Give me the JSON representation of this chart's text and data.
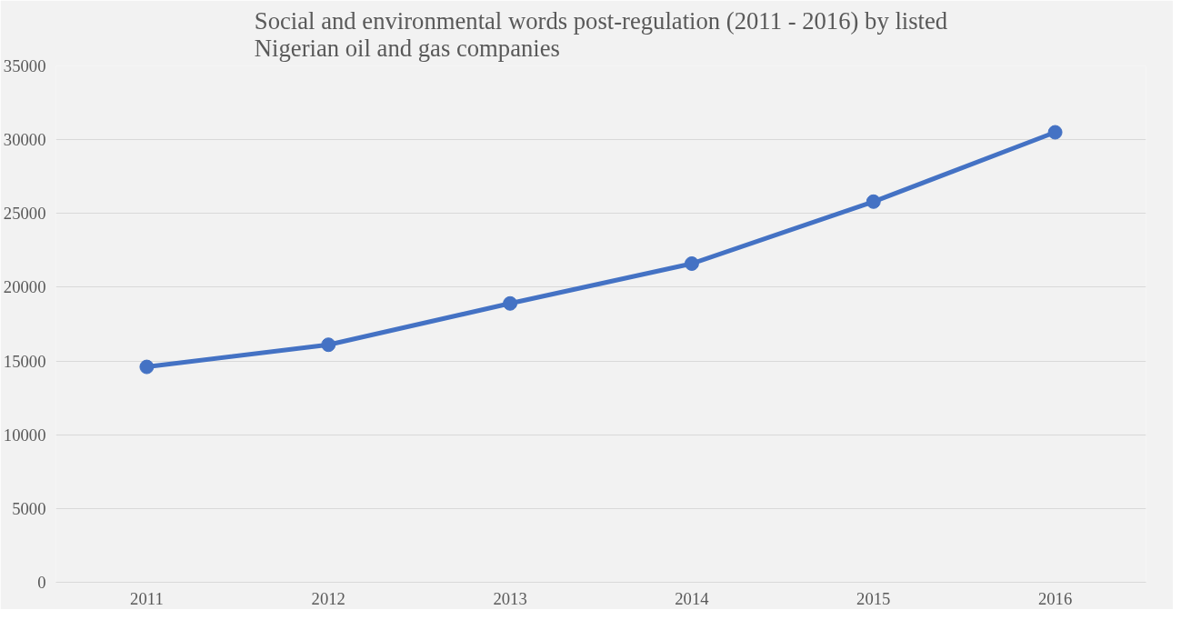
{
  "chart_data": {
    "type": "line",
    "title": "Social and environmental words post-regulation (2011 - 2016) by listed Nigerian oil and gas companies",
    "categories": [
      "2011",
      "2012",
      "2013",
      "2014",
      "2015",
      "2016"
    ],
    "series": [
      {
        "color": "#4472c4",
        "values": [
          14600,
          16100,
          18900,
          21600,
          25800,
          30500
        ]
      }
    ],
    "ylim": [
      0,
      35000
    ],
    "yticks": [
      0,
      5000,
      10000,
      15000,
      20000,
      25000,
      30000,
      35000
    ],
    "grid": "y",
    "marker": "circle",
    "line_style": "solid"
  }
}
